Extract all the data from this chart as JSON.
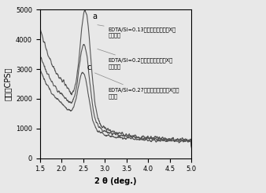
{
  "xlabel": "2 θ (deg.)",
  "ylabel": "强度（CPS）",
  "xlim": [
    1.5,
    5.0
  ],
  "ylim": [
    0,
    5000
  ],
  "yticks": [
    0,
    1000,
    2000,
    3000,
    4000,
    5000
  ],
  "xticks": [
    1.5,
    2.0,
    2.5,
    3.0,
    3.5,
    4.0,
    4.5,
    5.0
  ],
  "label_a": "a",
  "label_c": "c",
  "annotation1": "EDTA/Si=0.13硬基介孔分子筛的X射\n线衍射图",
  "annotation2": "EDTA/Si=0.2硬基介孔分子筛的X射\n线衍射图",
  "annotation3": "EDTA/Si=0.27硬基介孔分子筛的X射线\n衍射图",
  "line_color": "#555555",
  "background": "#e8e8e8"
}
